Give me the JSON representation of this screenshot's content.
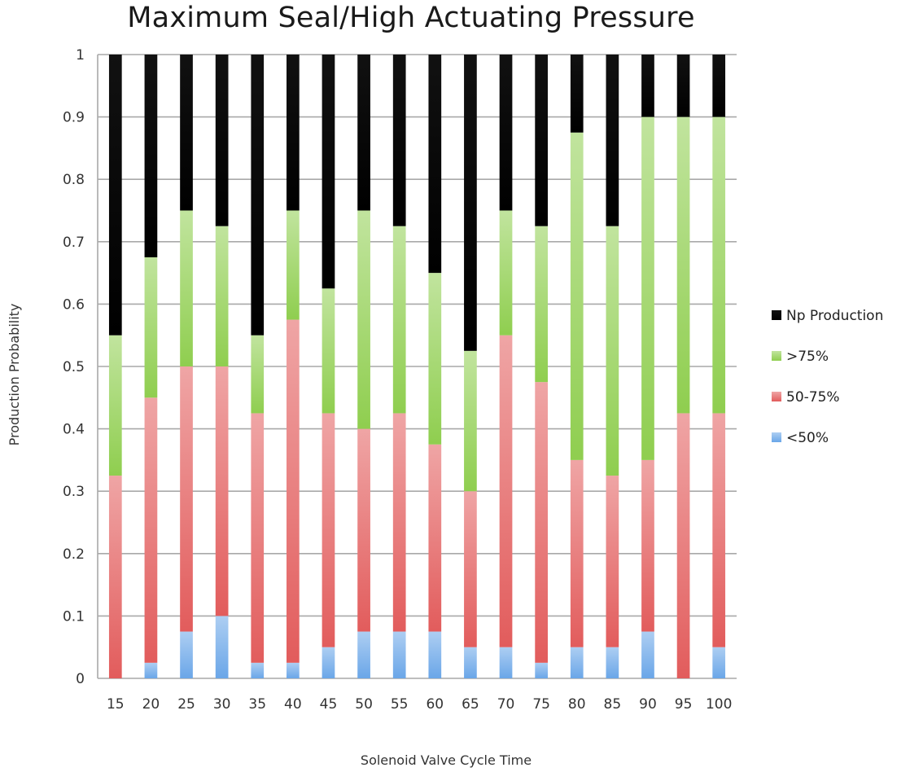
{
  "chart_data": {
    "type": "bar",
    "stacked": true,
    "title": "Maximum Seal/High Actuating Pressure",
    "xlabel": "Solenoid Valve Cycle Time",
    "ylabel": "Production Probability",
    "ylim": [
      0,
      1
    ],
    "yticks": [
      "0",
      "0.1",
      "0.2",
      "0.3",
      "0.4",
      "0.5",
      "0.6",
      "0.7",
      "0.8",
      "0.9",
      "1"
    ],
    "grid": true,
    "legend_position": "right",
    "categories": [
      "15",
      "20",
      "25",
      "30",
      "35",
      "40",
      "45",
      "50",
      "55",
      "60",
      "65",
      "70",
      "75",
      "80",
      "85",
      "90",
      "95",
      "100"
    ],
    "series": [
      {
        "name": "<50%",
        "color": "#6aa6e8",
        "values": [
          0,
          0.025,
          0.075,
          0.1,
          0.025,
          0.025,
          0.05,
          0.075,
          0.075,
          0.075,
          0.05,
          0.05,
          0.025,
          0.05,
          0.05,
          0.075,
          0,
          0.05
        ]
      },
      {
        "name": "50-75%",
        "color": "#e25c5c",
        "values": [
          0.325,
          0.425,
          0.425,
          0.4,
          0.4,
          0.55,
          0.375,
          0.325,
          0.35,
          0.3,
          0.25,
          0.5,
          0.45,
          0.3,
          0.275,
          0.275,
          0.425,
          0.375
        ]
      },
      {
        "name": ">75%",
        "color": "#8fce4f",
        "values": [
          0.225,
          0.225,
          0.25,
          0.225,
          0.125,
          0.175,
          0.2,
          0.35,
          0.3,
          0.275,
          0.225,
          0.2,
          0.25,
          0.525,
          0.4,
          0.55,
          0.475,
          0.475
        ]
      },
      {
        "name": "Np Production",
        "color": "#000000",
        "values": [
          0.45,
          0.325,
          0.25,
          0.275,
          0.45,
          0.25,
          0.375,
          0.25,
          0.275,
          0.35,
          0.475,
          0.25,
          0.275,
          0.125,
          0.275,
          0.1,
          0.1,
          0.1
        ]
      }
    ],
    "legend_order": [
      "Np Production",
      ">75%",
      "50-75%",
      "<50%"
    ]
  }
}
